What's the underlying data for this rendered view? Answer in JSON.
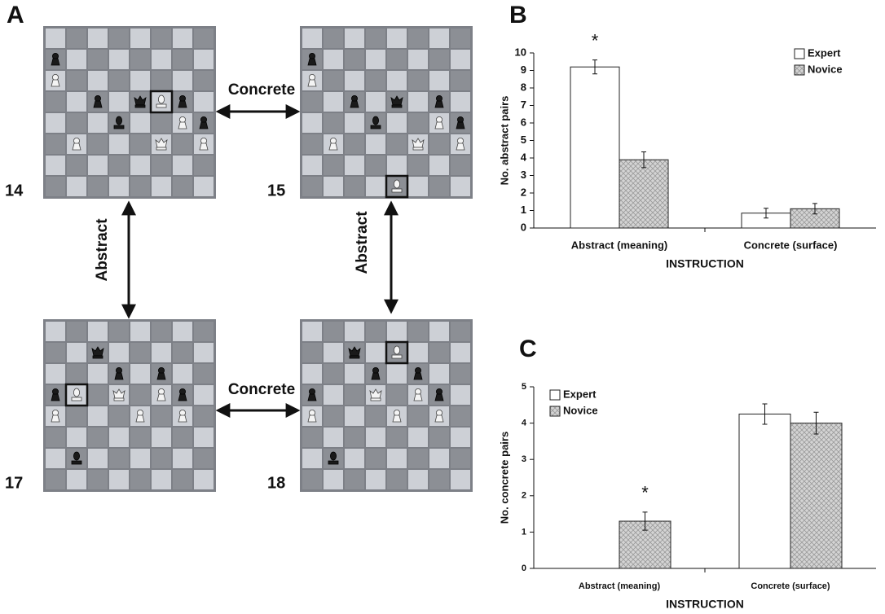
{
  "panel_a": {
    "label": "A",
    "boards": [
      "14",
      "15",
      "17",
      "18"
    ],
    "horizontal_link": "Concrete",
    "vertical_link": "Abstract"
  },
  "chart_data": [
    {
      "type": "bar",
      "label": "B",
      "y_label": "No. abstract pairs",
      "x_label": "INSTRUCTION",
      "categories": [
        "Abstract (meaning)",
        "Concrete (surface)"
      ],
      "series": [
        {
          "name": "Expert",
          "color": "#ffffff",
          "hatch": false,
          "values": [
            9.2,
            0.85
          ],
          "errors": [
            0.4,
            0.28
          ]
        },
        {
          "name": "Novice",
          "color": "#c8c8c8",
          "hatch": true,
          "values": [
            3.9,
            1.1
          ],
          "errors": [
            0.45,
            0.3
          ]
        }
      ],
      "ylim": [
        0,
        10
      ],
      "yticks": [
        0,
        1,
        2,
        3,
        4,
        5,
        6,
        7,
        8,
        9,
        10
      ],
      "legend": "upper right",
      "annotations": [
        {
          "text": "*",
          "category": "Abstract (meaning)"
        }
      ]
    },
    {
      "type": "bar",
      "label": "C",
      "y_label": "No. concrete pairs",
      "x_label": "INSTRUCTION",
      "categories": [
        "Abstract (meaning)",
        "Concrete (surface)"
      ],
      "series": [
        {
          "name": "Expert",
          "color": "#ffffff",
          "hatch": false,
          "values": [
            0,
            4.25
          ],
          "errors": [
            0,
            0.28
          ]
        },
        {
          "name": "Novice",
          "color": "#c8c8c8",
          "hatch": true,
          "values": [
            1.3,
            4.0
          ],
          "errors": [
            0.25,
            0.3
          ]
        }
      ],
      "ylim": [
        0,
        5
      ],
      "yticks": [
        0,
        1,
        2,
        3,
        4,
        5
      ],
      "legend": "upper left",
      "annotations": [
        {
          "text": "*",
          "category": "Abstract (meaning)"
        }
      ]
    }
  ]
}
